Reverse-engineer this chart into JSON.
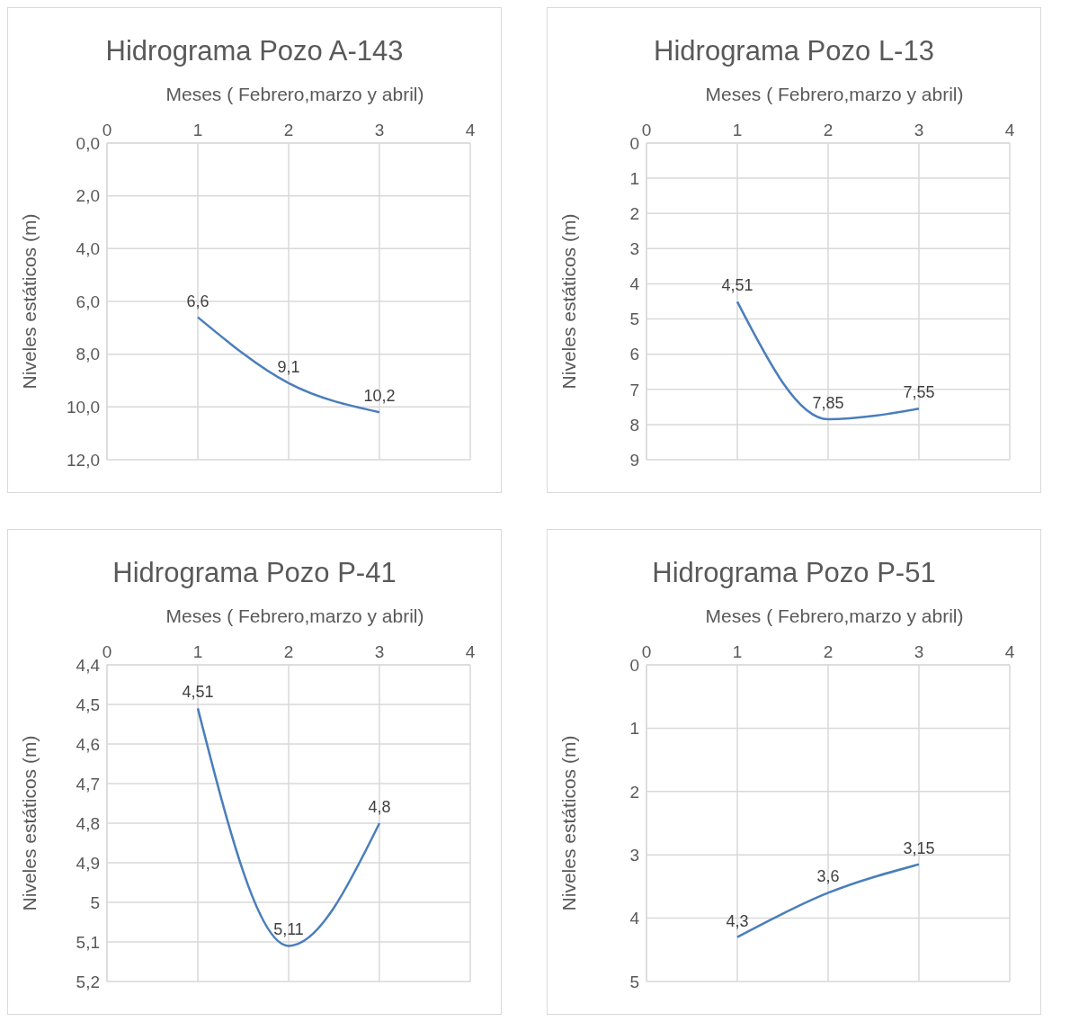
{
  "chart_data": [
    {
      "type": "line",
      "title": "Hidrograma Pozo A-143",
      "xlabel": "Meses ( Febrero,marzo y abril)",
      "ylabel": "Niveles estáticos  (m)",
      "x": [
        1,
        2,
        3
      ],
      "xlim": [
        0,
        4
      ],
      "xticks": [
        0,
        1,
        2,
        3,
        4
      ],
      "ylim": [
        12,
        0
      ],
      "yticks": [
        {
          "value": 0,
          "label": "0,0"
        },
        {
          "value": 2,
          "label": "2,0"
        },
        {
          "value": 4,
          "label": "4,0"
        },
        {
          "value": 6,
          "label": "6,0"
        },
        {
          "value": 8,
          "label": "8,0"
        },
        {
          "value": 10,
          "label": "10,0"
        },
        {
          "value": 12,
          "label": "12,0"
        }
      ],
      "grid": true,
      "marker": "none",
      "series": [
        {
          "color": "#4a7ebb",
          "values": [
            6.6,
            9.1,
            10.2
          ],
          "value_labels": [
            "6,6",
            "9,1",
            "10,2"
          ]
        }
      ]
    },
    {
      "type": "line",
      "title": "Hidrograma Pozo L-13",
      "xlabel": "Meses ( Febrero,marzo y abril)",
      "ylabel": "Niveles estáticos  (m)",
      "x": [
        1,
        2,
        3
      ],
      "xlim": [
        0,
        4
      ],
      "xticks": [
        0,
        1,
        2,
        3,
        4
      ],
      "ylim": [
        9,
        0
      ],
      "yticks": [
        0,
        1,
        2,
        3,
        4,
        5,
        6,
        7,
        8,
        9
      ],
      "grid": true,
      "marker": "none",
      "series": [
        {
          "color": "#4a7ebb",
          "values": [
            4.51,
            7.85,
            7.55
          ],
          "value_labels": [
            "4,51",
            "7,85",
            "7,55"
          ]
        }
      ]
    },
    {
      "type": "line",
      "title": "Hidrograma Pozo P-41",
      "xlabel": "Meses ( Febrero,marzo y abril)",
      "ylabel": "Niveles estáticos  (m)",
      "x": [
        1,
        2,
        3
      ],
      "xlim": [
        0,
        4
      ],
      "xticks": [
        0,
        1,
        2,
        3,
        4
      ],
      "ylim": [
        5.2,
        4.4
      ],
      "yticks": [
        {
          "value": 4.4,
          "label": "4,4"
        },
        {
          "value": 4.5,
          "label": "4,5"
        },
        {
          "value": 4.6,
          "label": "4,6"
        },
        {
          "value": 4.7,
          "label": "4,7"
        },
        {
          "value": 4.8,
          "label": "4,8"
        },
        {
          "value": 4.9,
          "label": "4,9"
        },
        5,
        {
          "value": 5.1,
          "label": "5,1"
        },
        {
          "value": 5.2,
          "label": "5,2"
        }
      ],
      "grid": true,
      "marker": "none",
      "series": [
        {
          "color": "#4a7ebb",
          "values": [
            4.51,
            5.11,
            4.8
          ],
          "value_labels": [
            "4,51",
            "5,11",
            "4,8"
          ]
        }
      ]
    },
    {
      "type": "line",
      "title": "Hidrograma Pozo P-51",
      "xlabel": "Meses ( Febrero,marzo y abril)",
      "ylabel": "Niveles estáticos  (m)",
      "x": [
        1,
        2,
        3
      ],
      "xlim": [
        0,
        4
      ],
      "xticks": [
        0,
        1,
        2,
        3,
        4
      ],
      "ylim": [
        5,
        0
      ],
      "yticks": [
        0,
        1,
        2,
        3,
        4,
        5
      ],
      "grid": true,
      "marker": "none",
      "series": [
        {
          "color": "#4a7ebb",
          "values": [
            4.3,
            3.6,
            3.15
          ],
          "value_labels": [
            "4,3",
            "3,6",
            "3,15"
          ]
        }
      ]
    }
  ]
}
